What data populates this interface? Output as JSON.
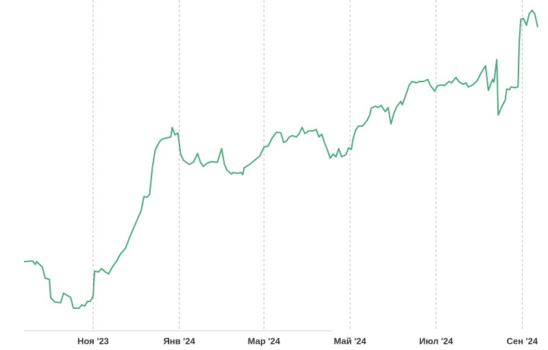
{
  "chart_data": {
    "type": "line",
    "x": [
      0,
      6,
      8,
      9,
      13,
      15,
      18,
      19,
      22,
      26,
      28,
      32,
      33,
      35,
      39,
      41,
      43,
      45,
      47,
      49,
      50,
      53,
      55,
      57,
      60,
      62,
      66,
      68,
      70,
      72,
      75,
      77,
      80,
      83,
      85,
      87,
      89,
      91,
      93,
      96,
      98,
      104,
      105,
      107,
      109,
      111,
      113,
      117,
      120,
      123,
      125,
      127,
      130,
      133,
      137,
      140,
      142,
      144,
      147,
      148,
      151,
      154,
      155,
      156,
      160,
      164,
      167,
      170,
      173,
      176,
      179,
      182,
      184,
      186,
      188,
      190,
      193,
      195,
      197,
      199,
      202,
      205,
      207,
      209,
      211,
      213,
      215,
      217,
      219,
      221,
      223,
      225,
      228,
      230,
      232,
      233,
      235,
      237,
      240,
      243,
      245,
      246,
      249,
      251,
      253,
      256,
      258,
      260,
      262,
      264,
      267,
      268,
      270,
      273,
      275,
      278,
      280,
      283,
      286,
      288,
      291,
      293,
      296,
      298,
      300,
      301,
      303,
      306,
      308,
      311,
      313,
      315,
      318,
      321,
      324,
      327,
      329,
      332,
      333,
      335,
      336,
      338,
      341,
      342,
      344,
      345,
      348,
      350,
      351,
      352,
      354,
      356,
      358,
      360,
      362,
      364
    ],
    "series": [
      {
        "color": "#45a97a",
        "values": [
          101,
          102,
          97,
          101,
          93,
          77,
          75,
          48,
          42,
          41,
          55,
          50,
          49,
          33,
          33,
          38,
          36,
          43,
          43,
          51,
          87,
          86,
          91,
          87,
          83,
          91,
          103,
          111,
          116,
          121,
          137,
          147,
          161,
          175,
          196,
          195,
          199,
          239,
          264,
          276,
          280,
          283,
          297,
          286,
          289,
          258,
          249,
          243,
          246,
          259,
          246,
          240,
          245,
          247,
          246,
          266,
          243,
          234,
          229,
          231,
          230,
          231,
          228,
          238,
          243,
          250,
          255,
          268,
          270,
          282,
          290,
          289,
          275,
          277,
          283,
          285,
          283,
          288,
          297,
          288,
          292,
          292,
          294,
          283,
          287,
          274,
          264,
          252,
          258,
          254,
          266,
          254,
          257,
          267,
          265,
          279,
          293,
          299,
          299,
          307,
          315,
          325,
          328,
          326,
          329,
          320,
          326,
          302,
          317,
          327,
          335,
          330,
          341,
          359,
          364,
          362,
          364,
          364,
          367,
          358,
          350,
          358,
          359,
          358,
          362,
          364,
          362,
          370,
          364,
          360,
          362,
          356,
          359,
          365,
          377,
          387,
          351,
          367,
          363,
          396,
          315,
          325,
          337,
          353,
          352,
          356,
          355,
          356,
          425,
          455,
          456,
          446,
          463,
          468,
          462,
          443
        ]
      }
    ],
    "xlim": [
      0,
      364
    ],
    "ylim": [
      0,
      473
    ],
    "xticks": [
      {
        "value": 49,
        "label": "Ноя '23"
      },
      {
        "value": 110,
        "label": "Янв '24"
      },
      {
        "value": 170,
        "label": "Мар '24"
      },
      {
        "value": 231,
        "label": "Май '24"
      },
      {
        "value": 292,
        "label": "Июл '24"
      },
      {
        "value": 353,
        "label": "Сен '24"
      }
    ],
    "grid": true
  }
}
